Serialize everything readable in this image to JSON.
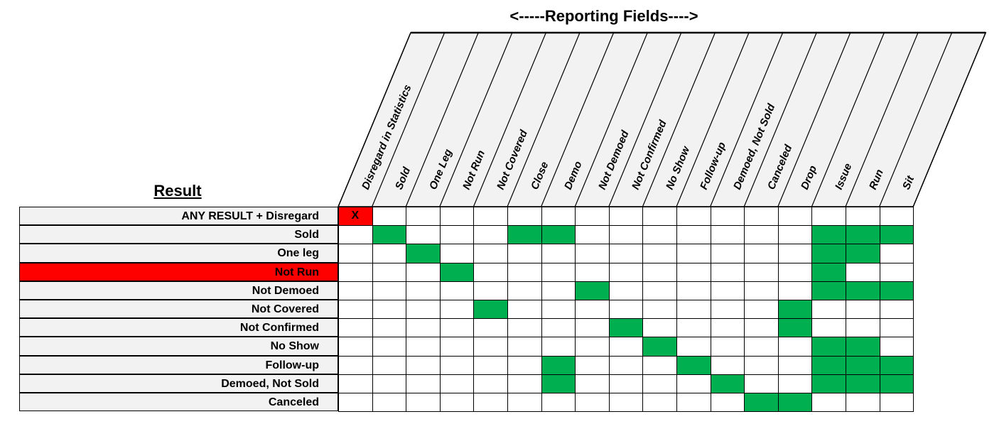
{
  "title": "<-----Reporting Fields---->",
  "result_heading": "Result",
  "columns": [
    "Disregard in Statistics",
    "Sold",
    "One Leg",
    "Not Run",
    "Not Covered",
    "Close",
    "Demo",
    "Not Demoed",
    "Not Confirmed",
    "No Show",
    "Follow-up",
    "Demoed, Not Sold",
    "Canceled",
    "Drop",
    "Issue",
    "Run",
    "Sit"
  ],
  "rows": [
    {
      "label": "ANY RESULT + Disregard",
      "highlight": false,
      "x_mark": "X",
      "marked": [
        0
      ]
    },
    {
      "label": "Sold",
      "highlight": false,
      "marked": [
        1,
        5,
        6,
        14,
        15,
        16
      ]
    },
    {
      "label": "One leg",
      "highlight": false,
      "marked": [
        2,
        14,
        15
      ]
    },
    {
      "label": "Not Run",
      "highlight": true,
      "marked": [
        3,
        14
      ]
    },
    {
      "label": "Not Demoed",
      "highlight": false,
      "marked": [
        7,
        14,
        15,
        16
      ]
    },
    {
      "label": "Not Covered",
      "highlight": false,
      "marked": [
        4,
        13
      ]
    },
    {
      "label": "Not Confirmed",
      "highlight": false,
      "marked": [
        8,
        13
      ]
    },
    {
      "label": "No Show",
      "highlight": false,
      "marked": [
        9,
        14,
        15
      ]
    },
    {
      "label": "Follow-up",
      "highlight": false,
      "marked": [
        6,
        10,
        14,
        15,
        16
      ]
    },
    {
      "label": "Demoed, Not Sold",
      "highlight": false,
      "marked": [
        6,
        11,
        14,
        15,
        16
      ]
    },
    {
      "label": "Canceled",
      "highlight": false,
      "marked": [
        12,
        13
      ]
    }
  ],
  "colors": {
    "mark": "#00b050",
    "highlight": "#ff0000",
    "label_bg": "#f2f2f2",
    "header_bg": "#f2f2f2",
    "border": "#000000"
  }
}
